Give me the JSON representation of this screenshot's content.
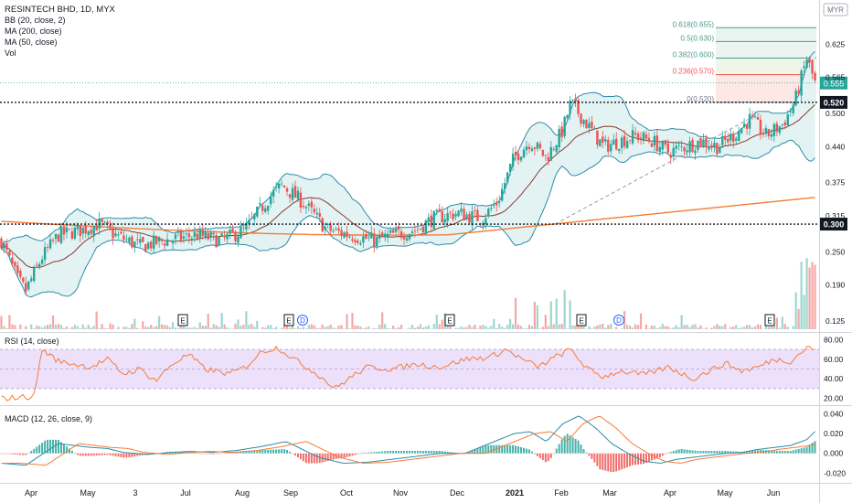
{
  "header": {
    "title": "RESINTECH BHD, 1D, MYX",
    "indicators": [
      "BB (20, close, 2)",
      "MA (200, close)",
      "MA (50, close)",
      "Vol"
    ]
  },
  "currency": "MYR",
  "colors": {
    "up": "#26a69a",
    "down": "#ef5350",
    "bb": "#2e8ba8",
    "bb_fill": "#e3f3f3",
    "ma200": "#f57c37",
    "ma50": "#8a3a2c",
    "rsi": "#f57c37",
    "rsi_band": "#ede0fa",
    "macd": "#2e8ba8",
    "signal": "#f57c37",
    "fib": "#4c9b8e"
  },
  "chart_data": [
    {
      "type": "candlestick",
      "name": "price",
      "x_ticks": [
        "Apr",
        "May",
        "3",
        "Jul",
        "Aug",
        "Sep",
        "Oct",
        "Nov",
        "Dec",
        "2021",
        "Feb",
        "Mar",
        "Apr",
        "May",
        "Jun"
      ],
      "x_range": [
        "2020-03-20",
        "2021-06-28"
      ],
      "y_ticks": [
        "0.625",
        "0.565",
        "0.500",
        "0.440",
        "0.375",
        "0.315",
        "0.250",
        "0.190",
        "0.125"
      ],
      "ylim": [
        0.11,
        0.705
      ],
      "last_price": "0.555",
      "levels": [
        {
          "value": 0.52,
          "label": "0.520"
        },
        {
          "value": 0.3,
          "label": "0.300"
        }
      ],
      "fibonacci": [
        {
          "label": "0.618(0.655)",
          "value": 0.655
        },
        {
          "label": "0.5(0.630)",
          "value": 0.63
        },
        {
          "label": "0.382(0.600)",
          "value": 0.6
        },
        {
          "label": "0.236(0.570)",
          "value": 0.57
        },
        {
          "label": "0(0.520)",
          "value": 0.52
        }
      ],
      "trendline": [
        [
          0.68,
          0.3
        ],
        [
          0.93,
          0.5
        ]
      ],
      "earnings_markers": [
        "E",
        "E",
        "E",
        "E",
        "E"
      ],
      "dividend_markers": [
        "D",
        "D"
      ],
      "path_anchors": [
        [
          0.0,
          0.27
        ],
        [
          0.02,
          0.2
        ],
        [
          0.03,
          0.18
        ],
        [
          0.05,
          0.24
        ],
        [
          0.07,
          0.28
        ],
        [
          0.1,
          0.29
        ],
        [
          0.12,
          0.3
        ],
        [
          0.14,
          0.28
        ],
        [
          0.17,
          0.26
        ],
        [
          0.2,
          0.27
        ],
        [
          0.24,
          0.28
        ],
        [
          0.27,
          0.27
        ],
        [
          0.3,
          0.29
        ],
        [
          0.33,
          0.35
        ],
        [
          0.345,
          0.37
        ],
        [
          0.37,
          0.34
        ],
        [
          0.4,
          0.29
        ],
        [
          0.43,
          0.28
        ],
        [
          0.46,
          0.27
        ],
        [
          0.48,
          0.28
        ],
        [
          0.51,
          0.29
        ],
        [
          0.53,
          0.31
        ],
        [
          0.56,
          0.32
        ],
        [
          0.59,
          0.31
        ],
        [
          0.61,
          0.34
        ],
        [
          0.63,
          0.42
        ],
        [
          0.65,
          0.45
        ],
        [
          0.67,
          0.42
        ],
        [
          0.69,
          0.47
        ],
        [
          0.7,
          0.52
        ],
        [
          0.72,
          0.48
        ],
        [
          0.74,
          0.44
        ],
        [
          0.76,
          0.45
        ],
        [
          0.78,
          0.46
        ],
        [
          0.8,
          0.45
        ],
        [
          0.82,
          0.43
        ],
        [
          0.84,
          0.44
        ],
        [
          0.86,
          0.45
        ],
        [
          0.88,
          0.44
        ],
        [
          0.9,
          0.46
        ],
        [
          0.92,
          0.49
        ],
        [
          0.94,
          0.46
        ],
        [
          0.96,
          0.48
        ],
        [
          0.975,
          0.52
        ],
        [
          0.99,
          0.6
        ],
        [
          1.0,
          0.555
        ]
      ]
    },
    {
      "type": "line",
      "name": "RSI (14, close)",
      "y_ticks": [
        "80.00",
        "60.00",
        "40.00",
        "20.00"
      ],
      "ylim": [
        15,
        85
      ],
      "band": [
        30,
        70
      ],
      "path_anchors": [
        [
          0.0,
          20
        ],
        [
          0.04,
          22
        ],
        [
          0.05,
          70
        ],
        [
          0.07,
          58
        ],
        [
          0.09,
          55
        ],
        [
          0.11,
          52
        ],
        [
          0.13,
          60
        ],
        [
          0.15,
          45
        ],
        [
          0.17,
          50
        ],
        [
          0.19,
          38
        ],
        [
          0.21,
          55
        ],
        [
          0.23,
          65
        ],
        [
          0.25,
          50
        ],
        [
          0.28,
          45
        ],
        [
          0.3,
          52
        ],
        [
          0.32,
          68
        ],
        [
          0.34,
          72
        ],
        [
          0.36,
          60
        ],
        [
          0.39,
          44
        ],
        [
          0.41,
          30
        ],
        [
          0.43,
          42
        ],
        [
          0.45,
          52
        ],
        [
          0.48,
          50
        ],
        [
          0.51,
          55
        ],
        [
          0.54,
          52
        ],
        [
          0.57,
          60
        ],
        [
          0.6,
          62
        ],
        [
          0.62,
          70
        ],
        [
          0.64,
          60
        ],
        [
          0.66,
          52
        ],
        [
          0.68,
          62
        ],
        [
          0.7,
          70
        ],
        [
          0.72,
          50
        ],
        [
          0.74,
          42
        ],
        [
          0.76,
          48
        ],
        [
          0.79,
          44
        ],
        [
          0.82,
          52
        ],
        [
          0.85,
          40
        ],
        [
          0.87,
          48
        ],
        [
          0.89,
          56
        ],
        [
          0.91,
          48
        ],
        [
          0.93,
          52
        ],
        [
          0.95,
          60
        ],
        [
          0.97,
          58
        ],
        [
          0.99,
          72
        ],
        [
          1.0,
          70
        ]
      ]
    },
    {
      "type": "line",
      "name": "MACD (12, 26, close, 9)",
      "y_ticks": [
        "0.040",
        "0.020",
        "0.000",
        "-0.020"
      ],
      "ylim": [
        -0.028,
        0.046
      ],
      "macd_anchors": [
        [
          0.0,
          -0.01
        ],
        [
          0.03,
          -0.012
        ],
        [
          0.05,
          -0.001
        ],
        [
          0.07,
          0.01
        ],
        [
          0.09,
          0.008
        ],
        [
          0.11,
          0.006
        ],
        [
          0.13,
          0.005
        ],
        [
          0.15,
          0.001
        ],
        [
          0.18,
          -0.001
        ],
        [
          0.21,
          0.001
        ],
        [
          0.23,
          0.002
        ],
        [
          0.26,
          0.001
        ],
        [
          0.29,
          0.003
        ],
        [
          0.32,
          0.007
        ],
        [
          0.35,
          0.012
        ],
        [
          0.37,
          0.004
        ],
        [
          0.39,
          -0.004
        ],
        [
          0.42,
          -0.01
        ],
        [
          0.45,
          -0.009
        ],
        [
          0.48,
          -0.006
        ],
        [
          0.51,
          -0.003
        ],
        [
          0.54,
          0.0
        ],
        [
          0.57,
          0.0
        ],
        [
          0.6,
          0.01
        ],
        [
          0.63,
          0.02
        ],
        [
          0.65,
          0.022
        ],
        [
          0.67,
          0.012
        ],
        [
          0.69,
          0.03
        ],
        [
          0.71,
          0.038
        ],
        [
          0.73,
          0.026
        ],
        [
          0.75,
          0.01
        ],
        [
          0.77,
          0.0
        ],
        [
          0.79,
          -0.008
        ],
        [
          0.81,
          -0.01
        ],
        [
          0.83,
          -0.006
        ],
        [
          0.85,
          -0.004
        ],
        [
          0.87,
          -0.002
        ],
        [
          0.89,
          0.0
        ],
        [
          0.91,
          0.001
        ],
        [
          0.93,
          0.004
        ],
        [
          0.95,
          0.006
        ],
        [
          0.97,
          0.008
        ],
        [
          0.99,
          0.014
        ],
        [
          1.0,
          0.022
        ]
      ],
      "signal_lag": 0.025
    }
  ]
}
